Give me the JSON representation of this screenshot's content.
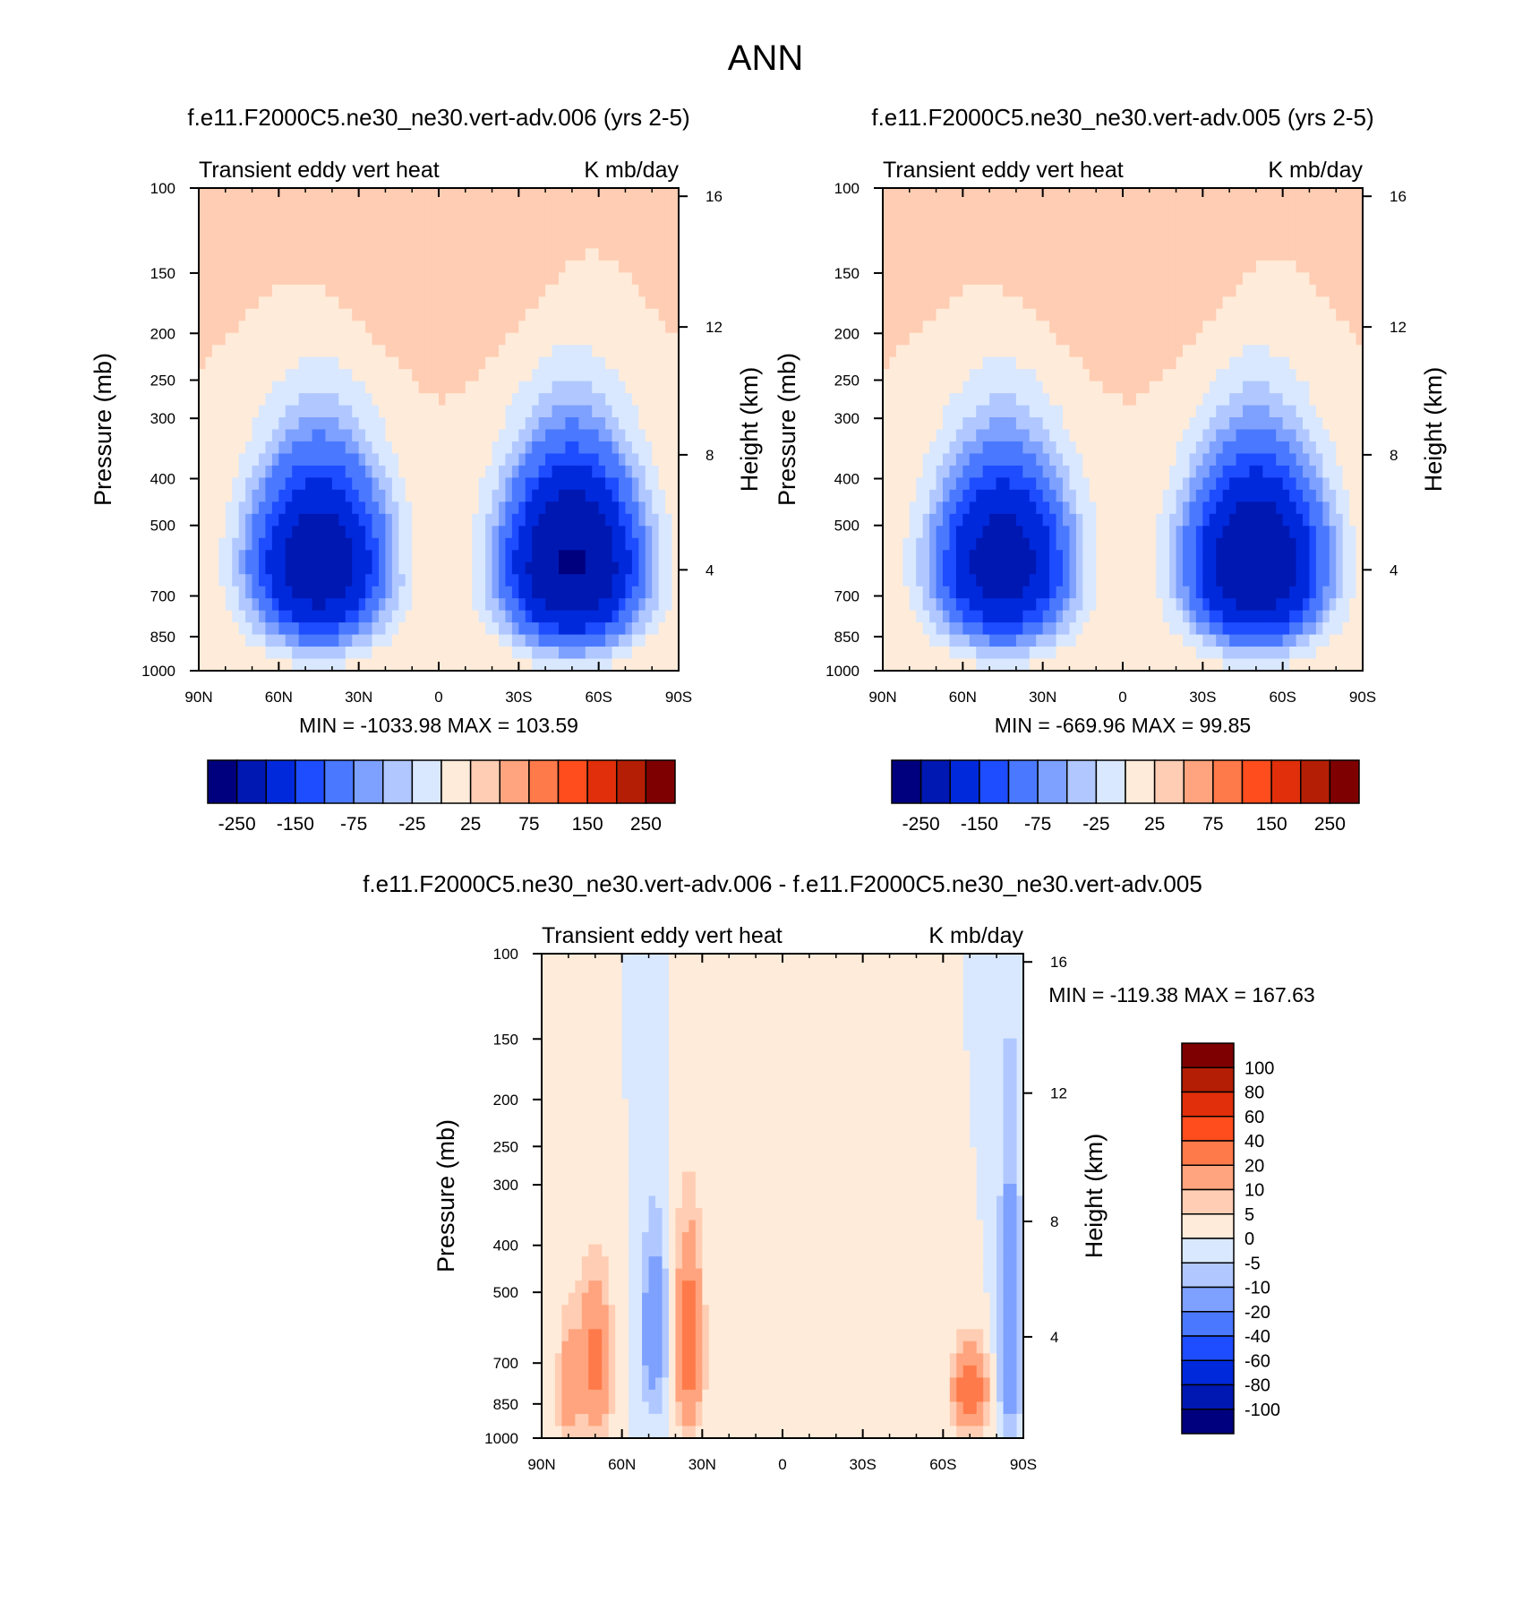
{
  "page_title": "ANN",
  "colors": {
    "div_palette": [
      "#00007f",
      "#0018b2",
      "#0029dc",
      "#1e4cff",
      "#4a79ff",
      "#7ea0ff",
      "#b0c8ff",
      "#d9e8ff",
      "#ffebd9",
      "#ffcdb3",
      "#ffa47e",
      "#ff7a4a",
      "#ff4d1e",
      "#e02f0a",
      "#b41e05",
      "#7f0000"
    ],
    "frame": "#000000"
  },
  "chart_data": [
    {
      "type": "heatmap",
      "title": "f.e11.F2000C5.ne30_ne30.vert-adv.006 (yrs 2-5)",
      "left_label": "Transient eddy vert heat",
      "right_label": "K mb/day",
      "ylabel": "Pressure (mb)",
      "y2label": "Height (km)",
      "x_ticks": [
        "90N",
        "60N",
        "30N",
        "0",
        "30S",
        "60S",
        "90S"
      ],
      "y_ticks": [
        "100",
        "150",
        "200",
        "250",
        "300",
        "400",
        "500",
        "700",
        "850",
        "1000"
      ],
      "y2_ticks": [
        "16",
        "12",
        "8",
        "4"
      ],
      "xlim": [
        90,
        -90
      ],
      "ylim": [
        1000,
        100
      ],
      "stats": "MIN = -1033.98  MAX = 103.59",
      "levels": [
        "-250",
        "-150",
        "-75",
        "-25",
        "25",
        "75",
        "150",
        "250"
      ],
      "field": {
        "lat": [
          90,
          60,
          30,
          0,
          -30,
          -60,
          -90
        ],
        "blobs": [
          {
            "lat": 45,
            "p": 600,
            "dlat": 22,
            "dp": 230,
            "v": -420
          },
          {
            "lat": -50,
            "p": 600,
            "dlat": 22,
            "dp": 230,
            "v": -520
          },
          {
            "lat": 8,
            "p": 570,
            "dlat": 10,
            "dp": 60,
            "v": 14
          },
          {
            "lat": 0,
            "p": 140,
            "dlat": 60,
            "dp": 80,
            "v": 20
          }
        ]
      }
    },
    {
      "type": "heatmap",
      "title": "f.e11.F2000C5.ne30_ne30.vert-adv.005 (yrs 2-5)",
      "left_label": "Transient eddy vert heat",
      "right_label": "K mb/day",
      "ylabel": "Pressure (mb)",
      "y2label": "Height (km)",
      "x_ticks": [
        "90N",
        "60N",
        "30N",
        "0",
        "30S",
        "60S",
        "90S"
      ],
      "y_ticks": [
        "100",
        "150",
        "200",
        "250",
        "300",
        "400",
        "500",
        "700",
        "850",
        "1000"
      ],
      "y2_ticks": [
        "16",
        "12",
        "8",
        "4"
      ],
      "xlim": [
        90,
        -90
      ],
      "ylim": [
        1000,
        100
      ],
      "stats": "MIN = -669.96  MAX =  99.85",
      "levels": [
        "-250",
        "-150",
        "-75",
        "-25",
        "25",
        "75",
        "150",
        "250"
      ],
      "field": {
        "lat": [
          90,
          60,
          30,
          0,
          -30,
          -60,
          -90
        ],
        "blobs": [
          {
            "lat": 45,
            "p": 600,
            "dlat": 22,
            "dp": 230,
            "v": -400
          },
          {
            "lat": -50,
            "p": 600,
            "dlat": 22,
            "dp": 230,
            "v": -480
          },
          {
            "lat": 8,
            "p": 570,
            "dlat": 10,
            "dp": 60,
            "v": 14
          },
          {
            "lat": 0,
            "p": 140,
            "dlat": 60,
            "dp": 80,
            "v": 20
          }
        ]
      }
    },
    {
      "type": "heatmap",
      "title": "f.e11.F2000C5.ne30_ne30.vert-adv.006 - f.e11.F2000C5.ne30_ne30.vert-adv.005",
      "left_label": "Transient eddy vert heat",
      "right_label": "K mb/day",
      "ylabel": "Pressure (mb)",
      "y2label": "Height (km)",
      "x_ticks": [
        "90N",
        "60N",
        "30N",
        "0",
        "30S",
        "60S",
        "90S"
      ],
      "y_ticks": [
        "100",
        "150",
        "200",
        "250",
        "300",
        "400",
        "500",
        "700",
        "850",
        "1000"
      ],
      "y2_ticks": [
        "16",
        "12",
        "8",
        "4"
      ],
      "xlim": [
        90,
        -90
      ],
      "ylim": [
        1000,
        100
      ],
      "stats": "MIN = -119.38  MAX = 167.63",
      "levels": [
        "100",
        "80",
        "60",
        "40",
        "20",
        "10",
        "5",
        "0",
        "-5",
        "-10",
        "-20",
        "-40",
        "-60",
        "-80",
        "-100"
      ],
      "field": {
        "lat": [
          90,
          60,
          30,
          0,
          -30,
          -60,
          -90
        ],
        "blobs": [
          {
            "lat": 70,
            "p": 700,
            "dlat": 6,
            "dp": 250,
            "v": 25
          },
          {
            "lat": 35,
            "p": 650,
            "dlat": 5,
            "dp": 280,
            "v": 30
          },
          {
            "lat": 48,
            "p": 600,
            "dlat": 5,
            "dp": 250,
            "v": -18
          },
          {
            "lat": -70,
            "p": 800,
            "dlat": 6,
            "dp": 150,
            "v": 35
          },
          {
            "lat": -85,
            "p": 600,
            "dlat": 4,
            "dp": 400,
            "v": -20
          },
          {
            "lat": 80,
            "p": 800,
            "dlat": 4,
            "dp": 250,
            "v": 15
          }
        ]
      }
    }
  ]
}
